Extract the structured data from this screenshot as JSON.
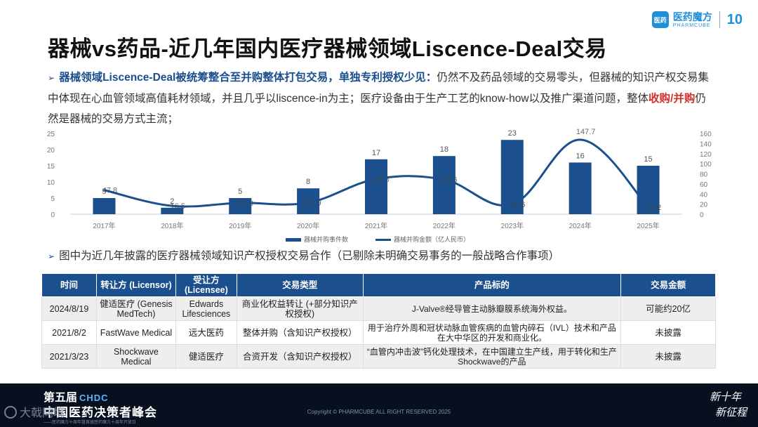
{
  "logo": {
    "mark": "医药",
    "name_cn": "医药魔方",
    "name_en": "PHARMCUBE",
    "ten": "10"
  },
  "title": "器械vs药品-近几年国内医疗器械领域Liscence-Deal交易",
  "bullet1": {
    "highlight": "器械领域Liscence-Deal被统筹整合至并购整体打包交易，单独专利授权少见：",
    "text": "仍然不及药品领域的交易零头，但器械的知识产权交易集中体现在心血管领域高值耗材领域，并且几乎以liscence-in为主；医疗设备由于生产工艺的know-how以及推广渠道问题，整体",
    "red": "收购/并购",
    "tail": "仍然是器械的交易方式主流；"
  },
  "bullet2": "图中为近几年披露的医疗器械领域知识产权授权交易合作（已剔除未明确交易事务的一般战略合作事项）",
  "colors": {
    "bar": "#1b4f8d",
    "line": "#1b4f8d",
    "header": "#1b4f8d",
    "highlight": "#1a4e8c",
    "red": "#d0312d"
  },
  "chart_data": {
    "type": "bar",
    "title": "",
    "categories": [
      "2017年",
      "2018年",
      "2019年",
      "2020年",
      "2021年",
      "2022年",
      "2023年",
      "2024年",
      "2025年"
    ],
    "series": [
      {
        "name": "器械并购事件数",
        "type": "bar",
        "axis": "left",
        "values": [
          5,
          2,
          5,
          8,
          17,
          18,
          23,
          16,
          15
        ]
      },
      {
        "name": "器械并购金额（亿人民币）",
        "type": "line",
        "axis": "right",
        "values": [
          47.8,
          16.5,
          22.3,
          22.9,
          69.6,
          68.6,
          19.6,
          147.7,
          14.2
        ]
      }
    ],
    "ylim": [
      0,
      25
    ],
    "y2lim": [
      0,
      160
    ],
    "yticks": [
      0,
      5,
      10,
      15,
      20,
      25
    ],
    "y2ticks": [
      0,
      20,
      40,
      60,
      80,
      100,
      120,
      140,
      160
    ],
    "legend": "bottom"
  },
  "table": {
    "headers": [
      "时间",
      "转让方 (Licensor)",
      "受让方 (Licensee)",
      "交易类型",
      "产品标的",
      "交易金额"
    ],
    "rows": [
      [
        "2024/8/19",
        "健适医疗 (Genesis MedTech)",
        "Edwards Lifesciences",
        "商业化权益转让 (+部分知识产权授权)",
        "J-Valve®经导管主动脉瓣膜系统海外权益。",
        "可能约20亿"
      ],
      [
        "2021/8/2",
        "FastWave Medical",
        "远大医药",
        "整体并购（含知识产权授权）",
        "用于治疗外周和冠状动脉血管疾病的血管内碎石（IVL）技术和产品在大中华区的开发和商业化。",
        "未披露"
      ],
      [
        "2021/3/23",
        "Shockwave Medical",
        "健适医疗",
        "合资开发（含知识产权授权）",
        "“血管内冲击波”钙化处理技术，在中国建立生产线，用于转化和生产Shockwave的产品",
        "未披露"
      ]
    ]
  },
  "footer": {
    "line1": "第五届",
    "chdc": "CHDC",
    "line2": "中国医药决策者峰会",
    "line3": "——医药魔方十周年暨首届医药魔方十周年开放日",
    "copyright": "Copyright © PHARMCUBE ALL RIGHT RESERVED 2025",
    "slogan1": "新十年",
    "slogan2": "新征程",
    "watermark": "大戟同境"
  }
}
